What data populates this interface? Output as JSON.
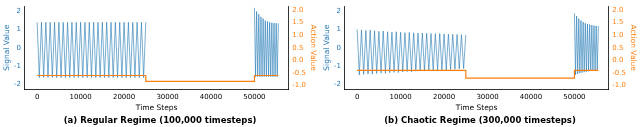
{
  "chart_data": [
    {
      "type": "line",
      "title": "(a) Regular Regime (100,000 timesteps)",
      "x_label": "Time Steps",
      "y_label": "Signal Value",
      "y2_label": "Action Value",
      "xlim": [
        -2800,
        57800
      ],
      "xticks": [
        0,
        10000,
        20000,
        30000,
        40000,
        50000
      ],
      "ylim": [
        -2.3,
        2.3
      ],
      "yticks": [
        -2,
        -1,
        0,
        1,
        2
      ],
      "y2lim": [
        -1.15,
        2.15
      ],
      "y2ticks": [
        {
          "value": -1,
          "label": "-1.0"
        },
        {
          "value": -0.5,
          "label": "-0.5"
        },
        {
          "value": 0,
          "label": "0.0"
        },
        {
          "value": 0.5,
          "label": "0.5"
        },
        {
          "value": 1,
          "label": "1.0"
        },
        {
          "value": 1.5,
          "label": "1.5"
        },
        {
          "value": 2,
          "label": "2.0"
        }
      ],
      "grid": false,
      "series": [
        {
          "name": "Signal Value",
          "color": "#1f77b4",
          "axis": "y",
          "x": [
            0,
            500,
            1000,
            1500,
            2000,
            2500,
            3000,
            3500,
            4000,
            4500,
            5000,
            5500,
            6000,
            6500,
            7000,
            7500,
            8000,
            8500,
            9000,
            9500,
            10000,
            10500,
            11000,
            11500,
            12000,
            12500,
            13000,
            13500,
            14000,
            14500,
            15000,
            15500,
            16000,
            16500,
            17000,
            17500,
            18000,
            18500,
            19000,
            19500,
            20000,
            20500,
            21000,
            21500,
            22000,
            22500,
            23000,
            23500,
            24000,
            24500,
            25000,
            37500,
            50000,
            50250,
            50500,
            50750,
            51000,
            51250,
            51500,
            51750,
            52000,
            52250,
            52500,
            52750,
            53000,
            53250,
            53500,
            53750,
            54000,
            54250,
            54500,
            54750,
            55000,
            55250,
            55500
          ],
          "values": [
            1.4,
            -1.65,
            1.4,
            -1.65,
            1.4,
            -1.65,
            1.4,
            -1.65,
            1.4,
            -1.65,
            1.4,
            -1.65,
            1.4,
            -1.65,
            1.4,
            -1.65,
            1.4,
            -1.65,
            1.4,
            -1.65,
            1.4,
            -1.65,
            1.4,
            -1.65,
            1.4,
            -1.65,
            1.4,
            -1.65,
            1.4,
            -1.65,
            1.4,
            -1.65,
            1.4,
            -1.65,
            1.4,
            -1.65,
            1.4,
            -1.65,
            1.4,
            -1.65,
            1.4,
            -1.65,
            1.4,
            -1.65,
            1.4,
            -1.65,
            1.4,
            -1.65,
            1.4,
            -1.65,
            1.4,
            null,
            2.2,
            -1.6,
            2.0,
            -1.6,
            1.85,
            -1.6,
            1.7,
            -1.6,
            1.6,
            -1.6,
            1.5,
            -1.6,
            1.45,
            -1.6,
            1.4,
            -1.6,
            1.38,
            -1.6,
            1.36,
            -1.6,
            1.35,
            -1.6,
            1.35
          ]
        },
        {
          "name": "Action Value",
          "color": "#ff7f0e",
          "axis": "y2",
          "x": [
            0,
            25000,
            25000,
            50000,
            50000,
            55500
          ],
          "values": [
            -0.6,
            -0.6,
            -0.83,
            -0.83,
            -0.6,
            -0.6
          ]
        }
      ]
    },
    {
      "type": "line",
      "title": "(b) Chaotic Regime (300,000 timesteps)",
      "x_label": "Time Steps",
      "y_label": "Signal Value",
      "y2_label": "Action Value",
      "xlim": [
        -2800,
        57800
      ],
      "xticks": [
        0,
        10000,
        20000,
        30000,
        40000,
        50000
      ],
      "ylim": [
        -2.3,
        2.3
      ],
      "yticks": [
        -2,
        -1,
        0,
        1,
        2
      ],
      "y2lim": [
        -1.15,
        2.15
      ],
      "y2ticks": [
        {
          "value": -1,
          "label": "-1.0"
        },
        {
          "value": -0.5,
          "label": "-0.5"
        },
        {
          "value": 0,
          "label": "0.0"
        },
        {
          "value": 0.5,
          "label": "0.5"
        },
        {
          "value": 1,
          "label": "1.0"
        },
        {
          "value": 1.5,
          "label": "1.5"
        },
        {
          "value": 2,
          "label": "2.0"
        }
      ],
      "grid": false,
      "series": [
        {
          "name": "Signal Value",
          "color": "#1f77b4",
          "axis": "y",
          "x": [
            0,
            500,
            1000,
            1500,
            2000,
            2500,
            3000,
            3500,
            4000,
            4500,
            5000,
            5500,
            6000,
            6500,
            7000,
            7500,
            8000,
            8500,
            9000,
            9500,
            10000,
            10500,
            11000,
            11500,
            12000,
            12500,
            13000,
            13500,
            14000,
            14500,
            15000,
            15500,
            16000,
            16500,
            17000,
            17500,
            18000,
            18500,
            19000,
            19500,
            20000,
            20500,
            21000,
            21500,
            22000,
            22500,
            23000,
            23500,
            24000,
            24500,
            25000,
            37500,
            50000,
            50250,
            50500,
            50750,
            51000,
            51250,
            51500,
            51750,
            52000,
            52250,
            52500,
            52750,
            53000,
            53250,
            53500,
            53750,
            54000,
            54250,
            54500,
            54750,
            55000,
            55250,
            55500
          ],
          "values": [
            1.0,
            -1.5,
            0.98,
            -1.47,
            0.95,
            -1.45,
            0.97,
            -1.46,
            0.93,
            -1.42,
            0.9,
            -1.4,
            0.92,
            -1.41,
            0.88,
            -1.38,
            0.86,
            -1.36,
            0.88,
            -1.37,
            0.85,
            -1.34,
            0.83,
            -1.32,
            0.84,
            -1.33,
            0.82,
            -1.3,
            0.8,
            -1.28,
            0.81,
            -1.29,
            0.79,
            -1.27,
            0.78,
            -1.25,
            0.77,
            -1.24,
            0.78,
            -1.23,
            0.76,
            -1.22,
            0.75,
            -1.2,
            0.74,
            -1.19,
            0.73,
            -1.17,
            0.72,
            -1.15,
            0.7,
            null,
            1.9,
            -1.5,
            1.75,
            -1.45,
            1.6,
            -1.4,
            1.5,
            -1.38,
            1.42,
            -1.35,
            1.35,
            -1.33,
            1.3,
            -1.3,
            1.28,
            -1.28,
            1.25,
            -1.27,
            1.22,
            -1.26,
            1.2,
            -1.25,
            1.2
          ]
        },
        {
          "name": "Action Value",
          "color": "#ff7f0e",
          "axis": "y2",
          "x": [
            0,
            25000,
            25000,
            50000,
            50000,
            55500
          ],
          "values": [
            -0.4,
            -0.4,
            -0.7,
            -0.7,
            -0.4,
            -0.4
          ]
        }
      ]
    }
  ]
}
